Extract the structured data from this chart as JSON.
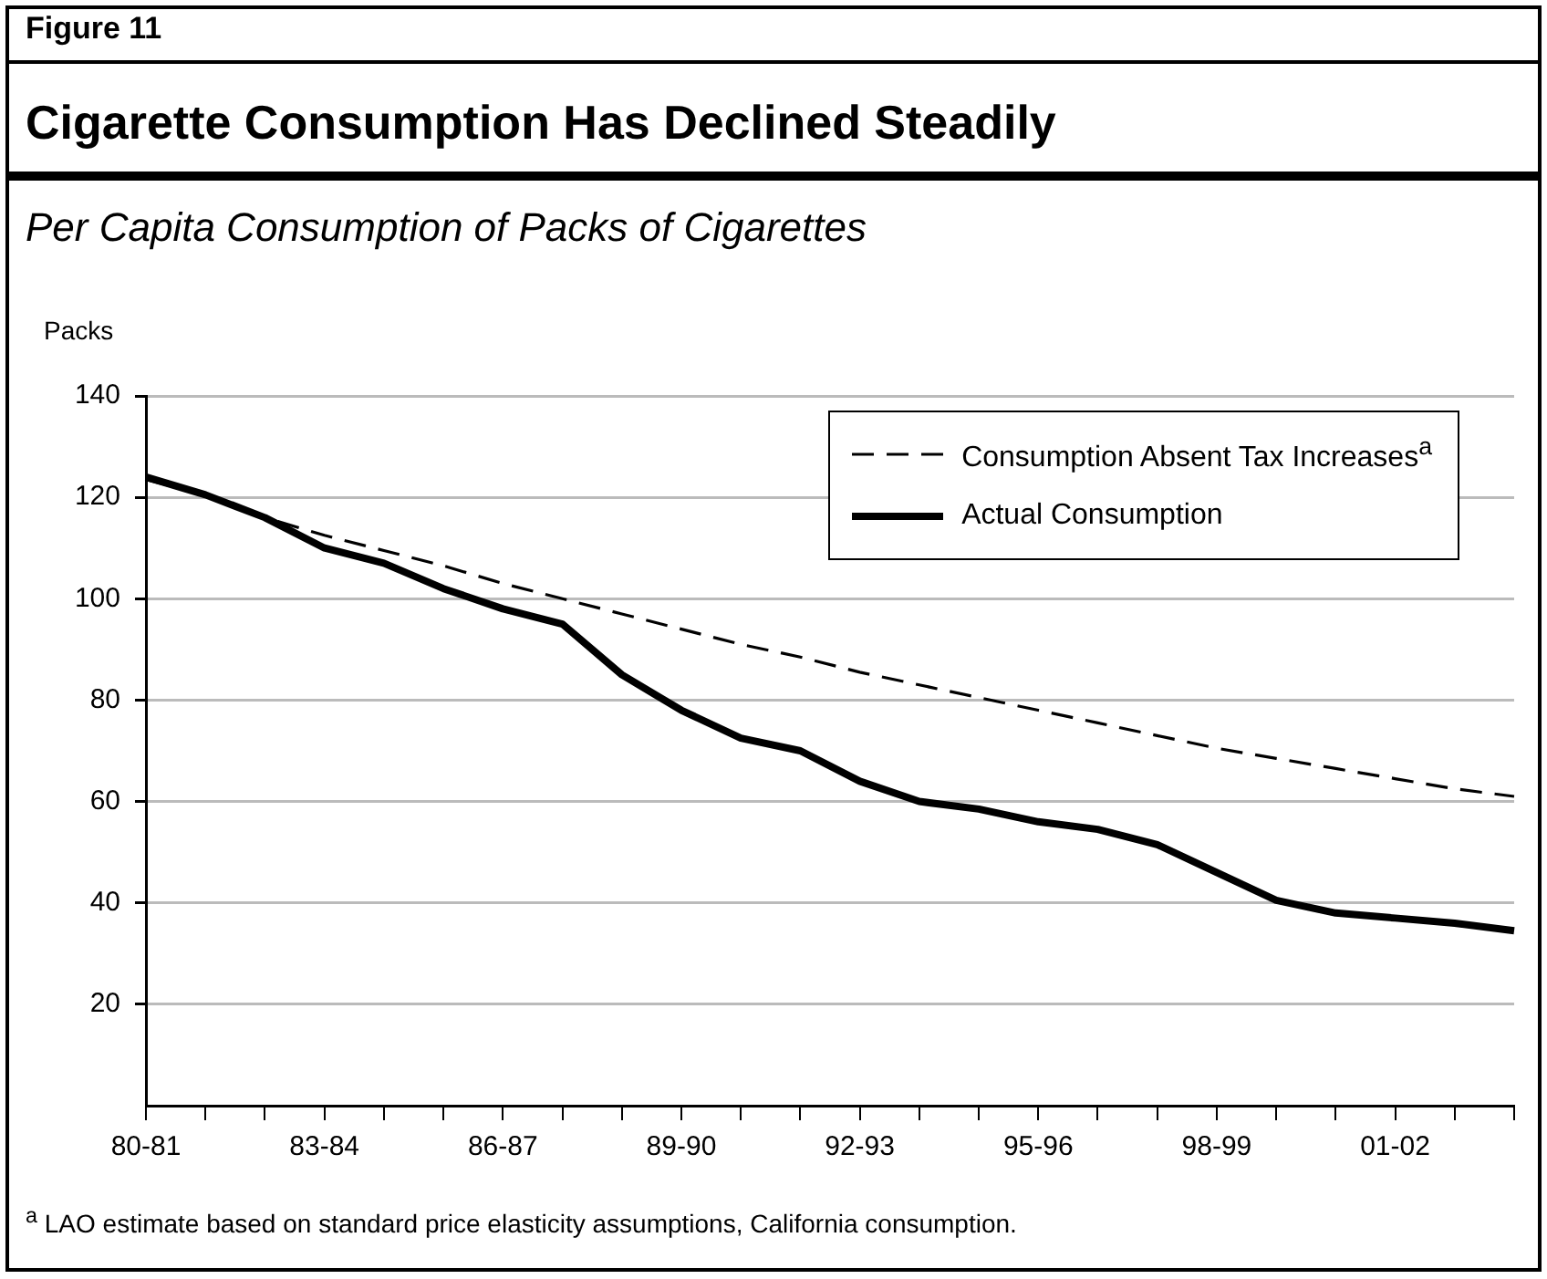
{
  "chart_data": {
    "type": "line",
    "title": "Cigarette Consumption Has Declined Steadily",
    "subtitle": "Per Capita Consumption of Packs of Cigarettes",
    "ylabel": "Packs",
    "annotations": [
      "Figure 11",
      "$^{a}$ LAO estimate based on standard price elasticity assumptions, California consumption."
    ],
    "categories": [
      "80-81",
      null,
      null,
      "83-84",
      null,
      null,
      "86-87",
      null,
      null,
      "89-90",
      null,
      null,
      "92-93",
      null,
      null,
      "95-96",
      null,
      null,
      "98-99",
      null,
      null,
      "01-02",
      null,
      null
    ],
    "series": [
      {
        "name": "Consumption Absent Tax Increases$^{a}$",
        "color": "#000000",
        "line_style": "dashed",
        "values": [
          123.5,
          120.5,
          116,
          112.5,
          109.5,
          106.5,
          103,
          100,
          97,
          94,
          91,
          88.5,
          85.5,
          83,
          80.5,
          78,
          75.5,
          73,
          70.5,
          68.5,
          66.5,
          64.5,
          62.5,
          61
        ]
      },
      {
        "name": "Actual Consumption",
        "color": "#000000",
        "line_style": "solid",
        "values": [
          124,
          120.5,
          116,
          110,
          107,
          102,
          98,
          95,
          85,
          78,
          72.5,
          70,
          64,
          60,
          58.5,
          56,
          54.5,
          51.5,
          46,
          40.5,
          38,
          37,
          36,
          34.5
        ]
      }
    ],
    "ylim": [
      0,
      140
    ],
    "yticks": [
      20,
      40,
      60,
      80,
      100,
      120,
      140
    ],
    "grid": "y",
    "legend": "top right",
    "marker": "none"
  }
}
